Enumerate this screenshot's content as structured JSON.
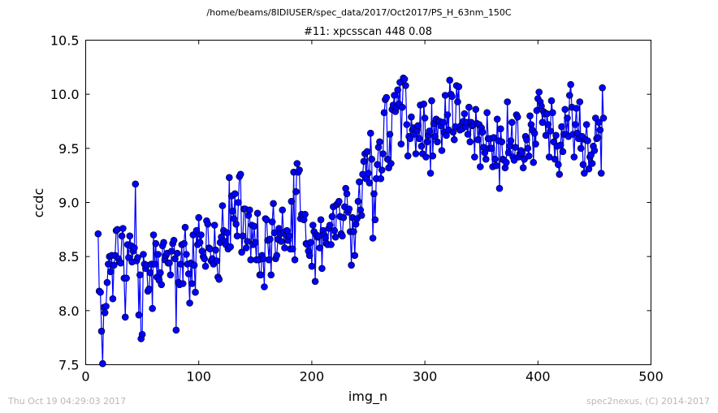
{
  "suptitle": "/home/beams/8IDIUSER/spec_data/2017/Oct2017/PS_H_63nm_150C",
  "footer": {
    "timestamp": "Thu Oct 19 04:29:03 2017",
    "credit": "spec2nexus, (C) 2014-2017"
  },
  "colors": {
    "series": "#0000ff",
    "axes": "#000000",
    "background": "#ffffff",
    "footer_text": "#b8b8b8"
  },
  "chart_data": {
    "type": "line",
    "marker": "circle",
    "title": "#11: xpcsscan 448 0.08",
    "xlabel": "img_n",
    "ylabel": "ccdc",
    "xlim": [
      0,
      500
    ],
    "ylim": [
      7.5,
      10.5
    ],
    "xticks": [
      0,
      100,
      200,
      300,
      400,
      500
    ],
    "yticks": [
      7.5,
      8.0,
      8.5,
      9.0,
      9.5,
      10.0,
      10.5
    ],
    "xtick_labels": [
      "0",
      "100",
      "200",
      "300",
      "400",
      "500"
    ],
    "ytick_labels": [
      "7.5",
      "8.0",
      "8.5",
      "9.0",
      "9.5",
      "10.0",
      "10.5"
    ],
    "grid": false,
    "legend": "none",
    "x_start": 11,
    "x_step": 1,
    "y": [
      8.71,
      8.18,
      8.17,
      7.81,
      7.51,
      8.03,
      7.98,
      8.04,
      8.26,
      8.43,
      8.5,
      8.36,
      8.51,
      8.11,
      8.42,
      8.51,
      8.74,
      8.75,
      8.48,
      8.45,
      8.44,
      8.69,
      8.76,
      8.3,
      7.94,
      8.3,
      8.61,
      8.49,
      8.69,
      8.6,
      8.45,
      8.55,
      8.58,
      9.17,
      8.46,
      8.49,
      7.96,
      8.33,
      7.74,
      7.78,
      8.52,
      8.43,
      8.39,
      8.42,
      8.18,
      8.2,
      8.35,
      8.43,
      8.02,
      8.7,
      8.43,
      8.62,
      8.31,
      8.52,
      8.28,
      8.35,
      8.24,
      8.6,
      8.63,
      8.47,
      8.51,
      8.53,
      8.44,
      8.44,
      8.33,
      8.55,
      8.62,
      8.65,
      8.48,
      7.82,
      8.53,
      8.26,
      8.24,
      8.43,
      8.61,
      8.25,
      8.62,
      8.77,
      8.52,
      8.43,
      8.34,
      8.07,
      8.44,
      8.25,
      8.7,
      8.42,
      8.17,
      8.74,
      8.61,
      8.86,
      8.63,
      8.7,
      8.55,
      8.5,
      8.48,
      8.41,
      8.83,
      8.8,
      8.58,
      8.57,
      8.46,
      8.48,
      8.43,
      8.79,
      8.56,
      8.46,
      8.31,
      8.29,
      8.63,
      8.68,
      8.97,
      8.74,
      8.64,
      8.61,
      8.72,
      8.57,
      9.23,
      8.59,
      9.06,
      8.92,
      8.85,
      9.08,
      8.8,
      8.69,
      9.0,
      9.24,
      9.26,
      8.54,
      8.69,
      8.94,
      8.94,
      8.58,
      8.64,
      8.88,
      8.93,
      8.47,
      8.79,
      8.61,
      8.78,
      8.63,
      8.47,
      8.9,
      8.47,
      8.33,
      8.33,
      8.51,
      8.48,
      8.22,
      8.85,
      8.84,
      8.65,
      8.47,
      8.66,
      8.33,
      8.82,
      8.99,
      8.72,
      8.48,
      8.51,
      8.66,
      8.76,
      8.71,
      8.64,
      8.93,
      8.72,
      8.58,
      8.7,
      8.74,
      8.65,
      8.69,
      8.57,
      9.01,
      8.57,
      9.28,
      8.47,
      9.1,
      9.36,
      9.28,
      9.3,
      8.85,
      8.89,
      8.86,
      8.84,
      8.89,
      8.62,
      8.61,
      8.55,
      8.51,
      8.63,
      8.41,
      8.79,
      8.73,
      8.27,
      8.7,
      8.68,
      8.69,
      8.58,
      8.84,
      8.39,
      8.74,
      8.7,
      8.67,
      8.62,
      8.61,
      8.76,
      8.79,
      8.61,
      8.87,
      8.96,
      8.74,
      8.68,
      8.98,
      8.99,
      9.01,
      8.87,
      8.71,
      8.69,
      8.86,
      8.96,
      9.13,
      9.08,
      8.91,
      8.94,
      8.73,
      8.42,
      8.86,
      8.73,
      8.51,
      8.8,
      8.85,
      9.01,
      9.19,
      8.93,
      8.88,
      9.26,
      9.38,
      9.45,
      9.22,
      9.47,
      9.27,
      9.18,
      9.64,
      9.4,
      8.67,
      9.08,
      8.84,
      9.22,
      9.35,
      9.51,
      9.56,
      9.22,
      9.3,
      9.45,
      9.83,
      9.95,
      9.97,
      9.4,
      9.32,
      9.63,
      9.36,
      9.86,
      9.9,
      9.99,
      9.84,
      9.88,
      10.04,
      9.91,
      10.11,
      9.54,
      9.88,
      10.15,
      10.14,
      10.08,
      9.72,
      9.43,
      9.61,
      9.59,
      9.79,
      9.67,
      9.69,
      9.63,
      9.45,
      9.67,
      9.71,
      9.59,
      9.9,
      9.52,
      9.45,
      9.91,
      9.78,
      9.42,
      9.56,
      9.62,
      9.66,
      9.27,
      9.94,
      9.43,
      9.73,
      9.61,
      9.77,
      9.56,
      9.75,
      9.75,
      9.71,
      9.48,
      9.74,
      9.65,
      9.99,
      9.62,
      9.81,
      9.67,
      10.13,
      10.0,
      9.98,
      9.65,
      9.58,
      9.7,
      10.08,
      9.93,
      10.07,
      9.67,
      9.71,
      9.68,
      9.75,
      9.82,
      9.7,
      9.74,
      9.63,
      9.88,
      9.56,
      9.74,
      9.71,
      9.72,
      9.42,
      9.86,
      9.73,
      9.58,
      9.72,
      9.33,
      9.69,
      9.65,
      9.51,
      9.46,
      9.4,
      9.83,
      9.59,
      9.5,
      9.59,
      9.5,
      9.33,
      9.6,
      9.4,
      9.34,
      9.77,
      9.57,
      9.13,
      9.68,
      9.56,
      9.4,
      9.39,
      9.32,
      9.37,
      9.93,
      9.46,
      9.52,
      9.57,
      9.74,
      9.42,
      9.39,
      9.51,
      9.81,
      9.79,
      9.42,
      9.45,
      9.48,
      9.46,
      9.32,
      9.4,
      9.61,
      9.58,
      9.5,
      9.43,
      9.8,
      9.72,
      9.67,
      9.37,
      9.64,
      9.54,
      9.85,
      9.96,
      10.02,
      9.93,
      9.89,
      9.74,
      9.84,
      9.82,
      9.62,
      9.82,
      9.72,
      9.42,
      9.66,
      9.94,
      9.83,
      9.56,
      9.4,
      9.62,
      9.52,
      9.35,
      9.26,
      9.53,
      9.7,
      9.47,
      9.63,
      9.86,
      9.63,
      9.78,
      9.61,
      9.99,
      10.09,
      9.88,
      9.63,
      9.42,
      9.72,
      9.87,
      9.64,
      9.59,
      9.93,
      9.5,
      9.61,
      9.35,
      9.27,
      9.58,
      9.72,
      9.57,
      9.31,
      9.42,
      9.44,
      9.36,
      9.52,
      9.48,
      9.78,
      9.59,
      9.6,
      9.74,
      9.67,
      9.27,
      10.06,
      9.78
    ]
  }
}
